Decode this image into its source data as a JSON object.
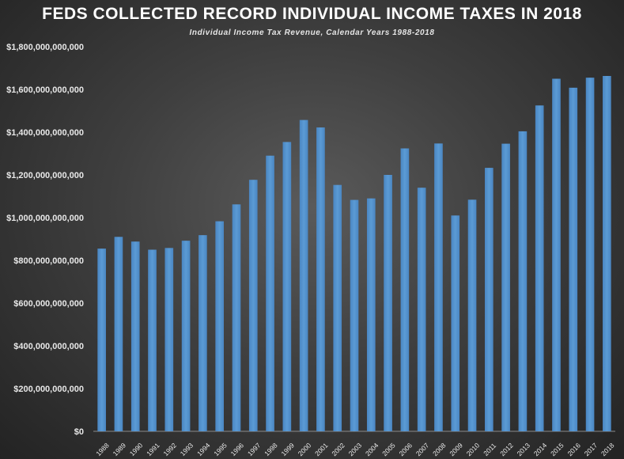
{
  "chart_data": {
    "type": "bar",
    "title": "FEDS COLLECTED RECORD INDIVIDUAL INCOME TAXES IN 2018",
    "subtitle": "Individual Income Tax Revenue, Calendar Years 1988-2018",
    "xlabel": "",
    "ylabel": "",
    "ylim": [
      0,
      1800000000000
    ],
    "yticks": [
      0,
      200000000000,
      400000000000,
      600000000000,
      800000000000,
      1000000000000,
      1200000000000,
      1400000000000,
      1600000000000,
      1800000000000
    ],
    "ytick_labels": [
      "$0",
      "$200,000,000,000",
      "$400,000,000,000",
      "$600,000,000,000",
      "$800,000,000,000",
      "$1,000,000,000,000",
      "$1,200,000,000,000",
      "$1,400,000,000,000",
      "$1,600,000,000,000",
      "$1,800,000,000,000"
    ],
    "grid": false,
    "legend": false,
    "bar_color": "#5b9bd5",
    "categories": [
      "1988",
      "1989",
      "1990",
      "1991",
      "1992",
      "1993",
      "1994",
      "1995",
      "1996",
      "1997",
      "1998",
      "1999",
      "2000",
      "2001",
      "2002",
      "2003",
      "2004",
      "2005",
      "2006",
      "2007",
      "2008",
      "2009",
      "2010",
      "2011",
      "2012",
      "2013",
      "2014",
      "2015",
      "2016",
      "2017",
      "2018"
    ],
    "values": [
      855000000000,
      910000000000,
      888000000000,
      850000000000,
      858000000000,
      892000000000,
      918000000000,
      983000000000,
      1062000000000,
      1177000000000,
      1290000000000,
      1354000000000,
      1457000000000,
      1422000000000,
      1153000000000,
      1083000000000,
      1090000000000,
      1200000000000,
      1324000000000,
      1140000000000,
      1347000000000,
      1010000000000,
      1084000000000,
      1233000000000,
      1346000000000,
      1404000000000,
      1525000000000,
      1650000000000,
      1608000000000,
      1655000000000,
      1663000000000
    ]
  }
}
